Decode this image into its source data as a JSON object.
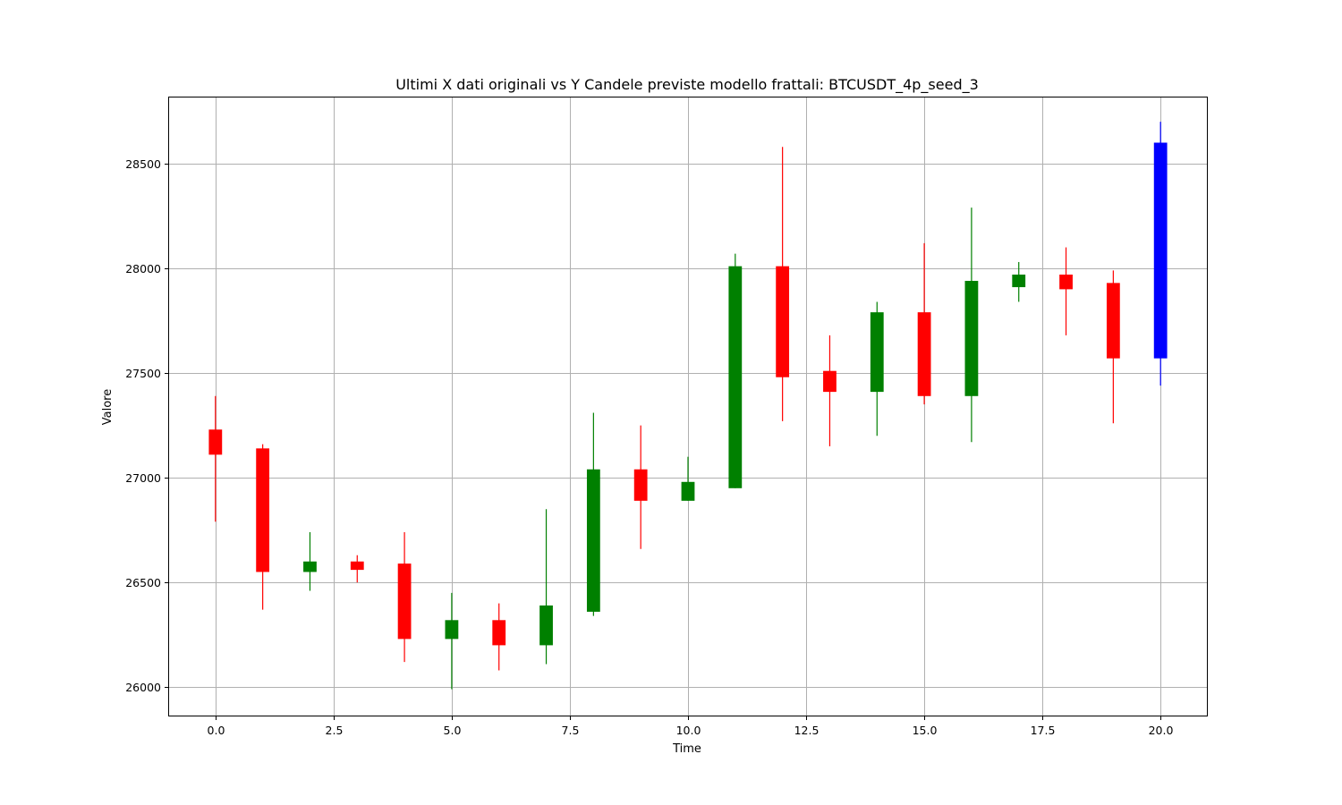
{
  "chart_data": {
    "type": "candlestick",
    "title": "Ultimi X dati originali vs Y Candele previste modello frattali: BTCUSDT_4p_seed_3",
    "xlabel": "Time",
    "ylabel": "Valore",
    "xlim": [
      -1,
      21
    ],
    "ylim": [
      25860,
      28820
    ],
    "xticks": [
      "0.0",
      "2.5",
      "5.0",
      "7.5",
      "10.0",
      "12.5",
      "15.0",
      "17.5",
      "20.0"
    ],
    "xtick_values": [
      0,
      2.5,
      5,
      7.5,
      10,
      12.5,
      15,
      17.5,
      20
    ],
    "yticks": [
      "26000",
      "26500",
      "27000",
      "27500",
      "28000",
      "28500"
    ],
    "ytick_values": [
      26000,
      26500,
      27000,
      27500,
      28000,
      28500
    ],
    "grid": true,
    "colors": {
      "up": "#008000",
      "down": "#ff0000",
      "predicted": "#0000ff"
    },
    "candles": [
      {
        "x": 0,
        "open": 27230,
        "high": 27390,
        "low": 26790,
        "close": 27110,
        "color": "down"
      },
      {
        "x": 1,
        "open": 27140,
        "high": 27160,
        "low": 26370,
        "close": 26550,
        "color": "down"
      },
      {
        "x": 2,
        "open": 26550,
        "high": 26740,
        "low": 26460,
        "close": 26600,
        "color": "up"
      },
      {
        "x": 3,
        "open": 26600,
        "high": 26630,
        "low": 26500,
        "close": 26560,
        "color": "down"
      },
      {
        "x": 4,
        "open": 26590,
        "high": 26740,
        "low": 26120,
        "close": 26230,
        "color": "down"
      },
      {
        "x": 5,
        "open": 26230,
        "high": 26450,
        "low": 25990,
        "close": 26320,
        "color": "up"
      },
      {
        "x": 6,
        "open": 26320,
        "high": 26400,
        "low": 26080,
        "close": 26200,
        "color": "down"
      },
      {
        "x": 7,
        "open": 26200,
        "high": 26850,
        "low": 26110,
        "close": 26390,
        "color": "up"
      },
      {
        "x": 8,
        "open": 26360,
        "high": 27310,
        "low": 26340,
        "close": 27040,
        "color": "up"
      },
      {
        "x": 9,
        "open": 27040,
        "high": 27250,
        "low": 26660,
        "close": 26890,
        "color": "down"
      },
      {
        "x": 10,
        "open": 26890,
        "high": 27100,
        "low": 26890,
        "close": 26980,
        "color": "up"
      },
      {
        "x": 11,
        "open": 26950,
        "high": 28070,
        "low": 26950,
        "close": 28010,
        "color": "up"
      },
      {
        "x": 12,
        "open": 28010,
        "high": 28580,
        "low": 27270,
        "close": 27480,
        "color": "down"
      },
      {
        "x": 13,
        "open": 27510,
        "high": 27680,
        "low": 27150,
        "close": 27410,
        "color": "down"
      },
      {
        "x": 14,
        "open": 27410,
        "high": 27840,
        "low": 27200,
        "close": 27790,
        "color": "up"
      },
      {
        "x": 15,
        "open": 27790,
        "high": 28120,
        "low": 27350,
        "close": 27390,
        "color": "down"
      },
      {
        "x": 16,
        "open": 27390,
        "high": 28290,
        "low": 27170,
        "close": 27940,
        "color": "up"
      },
      {
        "x": 17,
        "open": 27910,
        "high": 28030,
        "low": 27840,
        "close": 27970,
        "color": "up"
      },
      {
        "x": 18,
        "open": 27970,
        "high": 28100,
        "low": 27680,
        "close": 27900,
        "color": "down"
      },
      {
        "x": 19,
        "open": 27930,
        "high": 27990,
        "low": 27260,
        "close": 27570,
        "color": "down"
      },
      {
        "x": 20,
        "open": 27570,
        "high": 28700,
        "low": 27440,
        "close": 28600,
        "color": "predicted"
      }
    ]
  }
}
